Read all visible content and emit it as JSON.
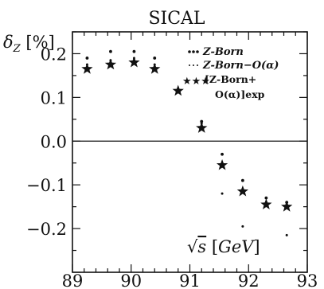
{
  "chart_data": {
    "type": "scatter",
    "title": "SICAL",
    "ylabel": "δZ [%]",
    "xlabel": "√s [GeV]",
    "xlim": [
      89,
      93
    ],
    "ylim": [
      -0.3,
      0.25
    ],
    "x_ticks": [
      89,
      90,
      91,
      92,
      93
    ],
    "x_tick_labels": [
      "89",
      "90",
      "91",
      "92",
      "93"
    ],
    "y_ticks": [
      0.2,
      0.1,
      0.0,
      -0.1,
      -0.2
    ],
    "y_tick_labels": [
      "0.2",
      "0.1",
      "0.0",
      "−0.1",
      "−0.2"
    ],
    "reference_line_y": 0,
    "legend_position": "top-right",
    "series": [
      {
        "name": "Z-Born",
        "marker": "dot-bold",
        "x": [
          89.25,
          89.65,
          90.05,
          90.4,
          91.2,
          91.55,
          91.9,
          92.3,
          92.65
        ],
        "y": [
          0.19,
          0.205,
          0.205,
          0.19,
          0.045,
          -0.03,
          -0.09,
          -0.13,
          -0.14
        ]
      },
      {
        "name": "Z-Born−O(α)",
        "marker": "dot-small",
        "x": [
          89.25,
          89.65,
          90.05,
          90.4,
          91.2,
          91.55,
          91.9,
          92.3,
          92.65
        ],
        "y": [
          0.175,
          0.185,
          0.19,
          0.175,
          0.04,
          -0.12,
          -0.195,
          -0.14,
          -0.215
        ]
      },
      {
        "name": "[Z-Born+O(α)]exp",
        "marker": "star",
        "x": [
          89.25,
          89.65,
          90.05,
          90.4,
          90.8,
          91.2,
          91.55,
          91.9,
          92.3,
          92.65
        ],
        "y": [
          0.165,
          0.175,
          0.18,
          0.165,
          0.115,
          0.03,
          -0.055,
          -0.115,
          -0.145,
          -0.15
        ]
      }
    ]
  },
  "legend": {
    "entry1": "Z-Born",
    "entry2": "Z-Born−O(α)",
    "entry3_line1": "[Z-Born+",
    "entry3_line2": "O(α)]exp"
  }
}
